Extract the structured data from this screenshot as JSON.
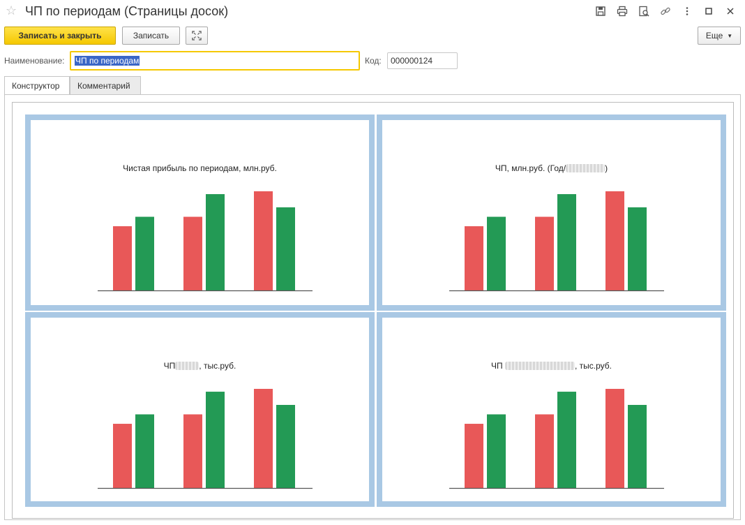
{
  "window": {
    "title": "ЧП по периодам (Страницы досок)",
    "icons": [
      "star-icon",
      "save-icon",
      "print-icon",
      "preview-icon",
      "link-icon",
      "more-vertical-icon",
      "maximize-icon",
      "close-icon"
    ]
  },
  "toolbar": {
    "save_close_label": "Записать и закрыть",
    "save_label": "Записать",
    "more_label": "Еще"
  },
  "form": {
    "name_label": "Наименование:",
    "name_value": "ЧП по периодам",
    "code_label": "Код:",
    "code_value": "000000124"
  },
  "tabs": [
    {
      "label": "Конструктор",
      "active": true
    },
    {
      "label": "Комментарий",
      "active": false
    }
  ],
  "colors": {
    "accent_yellow": "#f5c800",
    "board_border": "#a9c8e4",
    "bar_red": "#e85858",
    "bar_green": "#239a55"
  },
  "boards": [
    {
      "title_prefix": "Чистая прибыль по периодам, млн.руб.",
      "title_suffix": ""
    },
    {
      "title_prefix": "ЧП, млн.руб. (Год/",
      "title_suffix": ")"
    },
    {
      "title_prefix": "ЧП",
      "title_suffix": ", тыс.руб."
    },
    {
      "title_prefix": "ЧП",
      "title_suffix": ", тыс.руб."
    }
  ],
  "chart_data": [
    {
      "type": "bar",
      "categories": [
        "",
        "",
        ""
      ],
      "series": [
        {
          "values": [
            68,
            78,
            105
          ]
        },
        {
          "values": [
            78,
            102,
            88
          ]
        }
      ]
    },
    {
      "type": "bar",
      "categories": [
        "",
        "",
        ""
      ],
      "series": [
        {
          "values": [
            68,
            78,
            105
          ]
        },
        {
          "values": [
            78,
            102,
            88
          ]
        }
      ]
    },
    {
      "type": "bar",
      "categories": [
        "",
        "",
        ""
      ],
      "series": [
        {
          "values": [
            68,
            78,
            105
          ]
        },
        {
          "values": [
            78,
            102,
            88
          ]
        }
      ]
    },
    {
      "type": "bar",
      "categories": [
        "",
        "",
        ""
      ],
      "series": [
        {
          "values": [
            68,
            78,
            105
          ]
        },
        {
          "values": [
            78,
            102,
            88
          ]
        }
      ]
    }
  ]
}
